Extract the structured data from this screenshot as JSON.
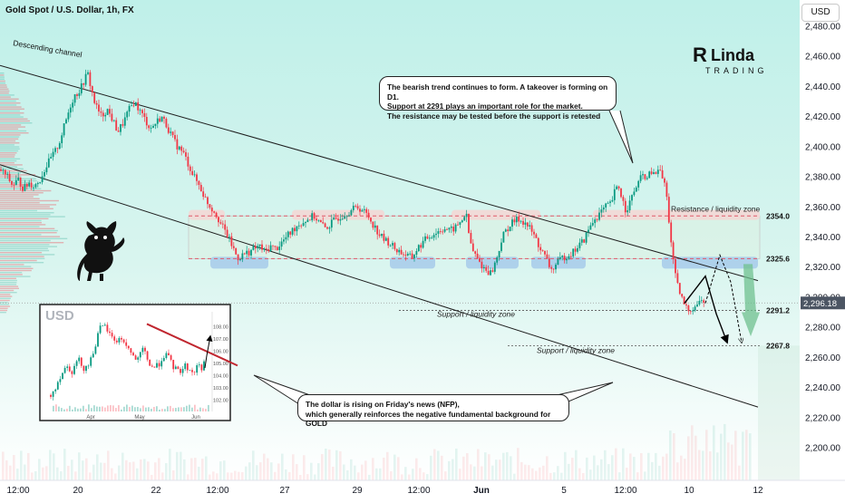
{
  "header": {
    "title": "Gold Spot / U.S. Dollar, 1h, FX"
  },
  "currency_button": "USD",
  "logo": {
    "brand": "RLinda",
    "sub": "TRADING"
  },
  "annotations": {
    "descending_channel": "Descending channel",
    "resistance": "Resistance / liquidity zone",
    "support_mid": "Support / liquidity zone",
    "support_low": "Support / liquidity zone",
    "bubble_top": [
      "The bearish trend continues to form. A takeover is forming on D1.",
      "Support at 2291 plays an important role for the market.",
      "The resistance may be tested before the support is retested"
    ],
    "bubble_bottom": [
      "The dollar is rising on Friday's news (NFP),",
      "which generally reinforces the negative fundamental background for GOLD"
    ]
  },
  "level_labels": [
    {
      "price": 2354.0,
      "label": "2354.0"
    },
    {
      "price": 2325.6,
      "label": "2325.6"
    },
    {
      "price": 2291.2,
      "label": "2291.2"
    },
    {
      "price": 2267.8,
      "label": "2267.8"
    }
  ],
  "colors": {
    "bull": "#089981",
    "bear": "#f23645",
    "resistance_line": "#e05a6a",
    "support_zone": "#a9cdea",
    "resistance_zone": "#f1d9d6",
    "bg_top": "#bff0e9",
    "bg_bottom": "#ffffff",
    "current_price_bg": "#4c5563",
    "arrow_green": "#6fc08f"
  },
  "chart_data": {
    "type": "candlestick",
    "title": "Gold Spot / U.S. Dollar, 1h, FX",
    "y_axis": {
      "ticks": [
        2200,
        2220,
        2240,
        2260,
        2280,
        2300,
        2320,
        2340,
        2360,
        2380,
        2400,
        2420,
        2440,
        2460,
        2480
      ],
      "tick_labels": [
        "2,200.00",
        "2,220.00",
        "2,240.00",
        "2,260.00",
        "2,280.00",
        "2,300.00",
        "2,320.00",
        "2,340.00",
        "2,360.00",
        "2,380.00",
        "2,400.00",
        "2,420.00",
        "2,440.00",
        "2,460.00",
        "2,480.00"
      ],
      "range": [
        2188,
        2490
      ]
    },
    "x_axis": {
      "tick_labels": [
        "12:00",
        "20",
        "22",
        "12:00",
        "27",
        "29",
        "12:00",
        "Jun",
        "5",
        "12:00",
        "10",
        "12"
      ]
    },
    "current_price": {
      "value": 2296.18,
      "label": "2,296.18"
    },
    "price_path": [
      [
        0,
        2385
      ],
      [
        8,
        2380
      ],
      [
        14,
        2374
      ],
      [
        20,
        2378
      ],
      [
        26,
        2372
      ],
      [
        32,
        2376
      ],
      [
        38,
        2374
      ],
      [
        44,
        2378
      ],
      [
        50,
        2386
      ],
      [
        56,
        2392
      ],
      [
        62,
        2398
      ],
      [
        66,
        2404
      ],
      [
        70,
        2412
      ],
      [
        74,
        2420
      ],
      [
        78,
        2428
      ],
      [
        82,
        2434
      ],
      [
        86,
        2436
      ],
      [
        90,
        2440
      ],
      [
        94,
        2446
      ],
      [
        97,
        2448
      ],
      [
        100,
        2440
      ],
      [
        104,
        2430
      ],
      [
        108,
        2424
      ],
      [
        112,
        2420
      ],
      [
        118,
        2425
      ],
      [
        124,
        2418
      ],
      [
        130,
        2410
      ],
      [
        136,
        2416
      ],
      [
        142,
        2424
      ],
      [
        148,
        2430
      ],
      [
        154,
        2424
      ],
      [
        160,
        2418
      ],
      [
        166,
        2412
      ],
      [
        172,
        2416
      ],
      [
        178,
        2420
      ],
      [
        184,
        2414
      ],
      [
        190,
        2406
      ],
      [
        196,
        2400
      ],
      [
        202,
        2396
      ],
      [
        208,
        2388
      ],
      [
        214,
        2380
      ],
      [
        220,
        2374
      ],
      [
        226,
        2366
      ],
      [
        232,
        2360
      ],
      [
        238,
        2356
      ],
      [
        244,
        2348
      ],
      [
        250,
        2342
      ],
      [
        256,
        2334
      ],
      [
        262,
        2326
      ],
      [
        268,
        2328
      ],
      [
        274,
        2330
      ],
      [
        280,
        2332
      ],
      [
        286,
        2334
      ],
      [
        292,
        2330
      ],
      [
        298,
        2334
      ],
      [
        304,
        2332
      ],
      [
        310,
        2336
      ],
      [
        316,
        2340
      ],
      [
        322,
        2344
      ],
      [
        328,
        2348
      ],
      [
        334,
        2350
      ],
      [
        340,
        2352
      ],
      [
        346,
        2354
      ],
      [
        352,
        2350
      ],
      [
        358,
        2346
      ],
      [
        364,
        2348
      ],
      [
        370,
        2352
      ],
      [
        376,
        2354
      ],
      [
        382,
        2356
      ],
      [
        388,
        2358
      ],
      [
        394,
        2360
      ],
      [
        400,
        2358
      ],
      [
        406,
        2354
      ],
      [
        412,
        2348
      ],
      [
        418,
        2342
      ],
      [
        424,
        2338
      ],
      [
        430,
        2336
      ],
      [
        436,
        2332
      ],
      [
        442,
        2330
      ],
      [
        448,
        2328
      ],
      [
        454,
        2326
      ],
      [
        460,
        2332
      ],
      [
        466,
        2336
      ],
      [
        472,
        2340
      ],
      [
        478,
        2342
      ],
      [
        484,
        2344
      ],
      [
        490,
        2346
      ],
      [
        496,
        2344
      ],
      [
        502,
        2346
      ],
      [
        508,
        2350
      ],
      [
        514,
        2356
      ],
      [
        518,
        2338
      ],
      [
        522,
        2330
      ],
      [
        526,
        2326
      ],
      [
        530,
        2322
      ],
      [
        536,
        2318
      ],
      [
        542,
        2316
      ],
      [
        548,
        2326
      ],
      [
        554,
        2340
      ],
      [
        560,
        2346
      ],
      [
        566,
        2350
      ],
      [
        572,
        2352
      ],
      [
        578,
        2350
      ],
      [
        584,
        2346
      ],
      [
        590,
        2340
      ],
      [
        596,
        2332
      ],
      [
        602,
        2326
      ],
      [
        608,
        2318
      ],
      [
        614,
        2322
      ],
      [
        620,
        2326
      ],
      [
        626,
        2328
      ],
      [
        632,
        2330
      ],
      [
        638,
        2334
      ],
      [
        644,
        2338
      ],
      [
        650,
        2346
      ],
      [
        656,
        2352
      ],
      [
        662,
        2356
      ],
      [
        668,
        2360
      ],
      [
        674,
        2362
      ],
      [
        678,
        2370
      ],
      [
        682,
        2374
      ],
      [
        686,
        2366
      ],
      [
        690,
        2358
      ],
      [
        694,
        2362
      ],
      [
        698,
        2368
      ],
      [
        702,
        2374
      ],
      [
        706,
        2378
      ],
      [
        710,
        2382
      ],
      [
        714,
        2378
      ],
      [
        718,
        2384
      ],
      [
        722,
        2380
      ],
      [
        726,
        2386
      ],
      [
        730,
        2380
      ],
      [
        734,
        2374
      ],
      [
        738,
        2350
      ],
      [
        742,
        2326
      ],
      [
        746,
        2310
      ],
      [
        750,
        2302
      ],
      [
        754,
        2296
      ],
      [
        758,
        2292
      ],
      [
        762,
        2292
      ],
      [
        766,
        2294
      ],
      [
        770,
        2296
      ],
      [
        774,
        2298
      ],
      [
        778,
        2296
      ]
    ],
    "channel": {
      "upper": {
        "from": [
          0,
          2454
        ],
        "to": [
          836,
          2311
        ]
      },
      "lower": {
        "from": [
          0,
          2388
        ],
        "to": [
          836,
          2227
        ]
      }
    },
    "horizontal_levels": [
      {
        "value": 2354.0,
        "style": "dashed",
        "color": "#e05a6a"
      },
      {
        "value": 2325.6,
        "style": "dashed",
        "color": "#e05a6a"
      },
      {
        "value": 2291.2,
        "style": "dotted",
        "color": "#555"
      },
      {
        "value": 2267.8,
        "style": "dotted",
        "color": "#555"
      }
    ],
    "resistance_band": {
      "low": 2325.6,
      "high": 2357
    },
    "forecast_path": [
      [
        755,
        2296
      ],
      [
        778,
        2314
      ],
      [
        790,
        2289
      ],
      [
        802,
        2270
      ]
    ],
    "inset": {
      "title": "USD",
      "type": "candlestick",
      "x_labels": [
        "Apr",
        "May",
        "Jun"
      ],
      "y_labels": [
        "102.00",
        "103.00",
        "104.00",
        "105.00",
        "106.00",
        "107.00",
        "108.00"
      ],
      "y_range": [
        101.5,
        108.6
      ],
      "price_path": [
        [
          0,
          102.4
        ],
        [
          6,
          103.2
        ],
        [
          12,
          104.2
        ],
        [
          18,
          104.8
        ],
        [
          24,
          104.3
        ],
        [
          30,
          105.4
        ],
        [
          36,
          104.6
        ],
        [
          42,
          104.9
        ],
        [
          48,
          106.2
        ],
        [
          54,
          107.8
        ],
        [
          60,
          108.0
        ],
        [
          66,
          107.2
        ],
        [
          72,
          106.8
        ],
        [
          78,
          107.0
        ],
        [
          84,
          106.4
        ],
        [
          90,
          105.6
        ],
        [
          96,
          105.2
        ],
        [
          102,
          106.2
        ],
        [
          108,
          105.0
        ],
        [
          114,
          104.6
        ],
        [
          120,
          105.0
        ],
        [
          126,
          105.8
        ],
        [
          130,
          105.4
        ],
        [
          136,
          104.6
        ],
        [
          142,
          104.3
        ],
        [
          148,
          104.8
        ],
        [
          154,
          104.4
        ],
        [
          158,
          104.2
        ],
        [
          162,
          104.9
        ],
        [
          166,
          104.6
        ],
        [
          170,
          105.0
        ]
      ],
      "trendline": [
        [
          106,
          108.2
        ],
        [
          206,
          104.8
        ]
      ]
    }
  }
}
